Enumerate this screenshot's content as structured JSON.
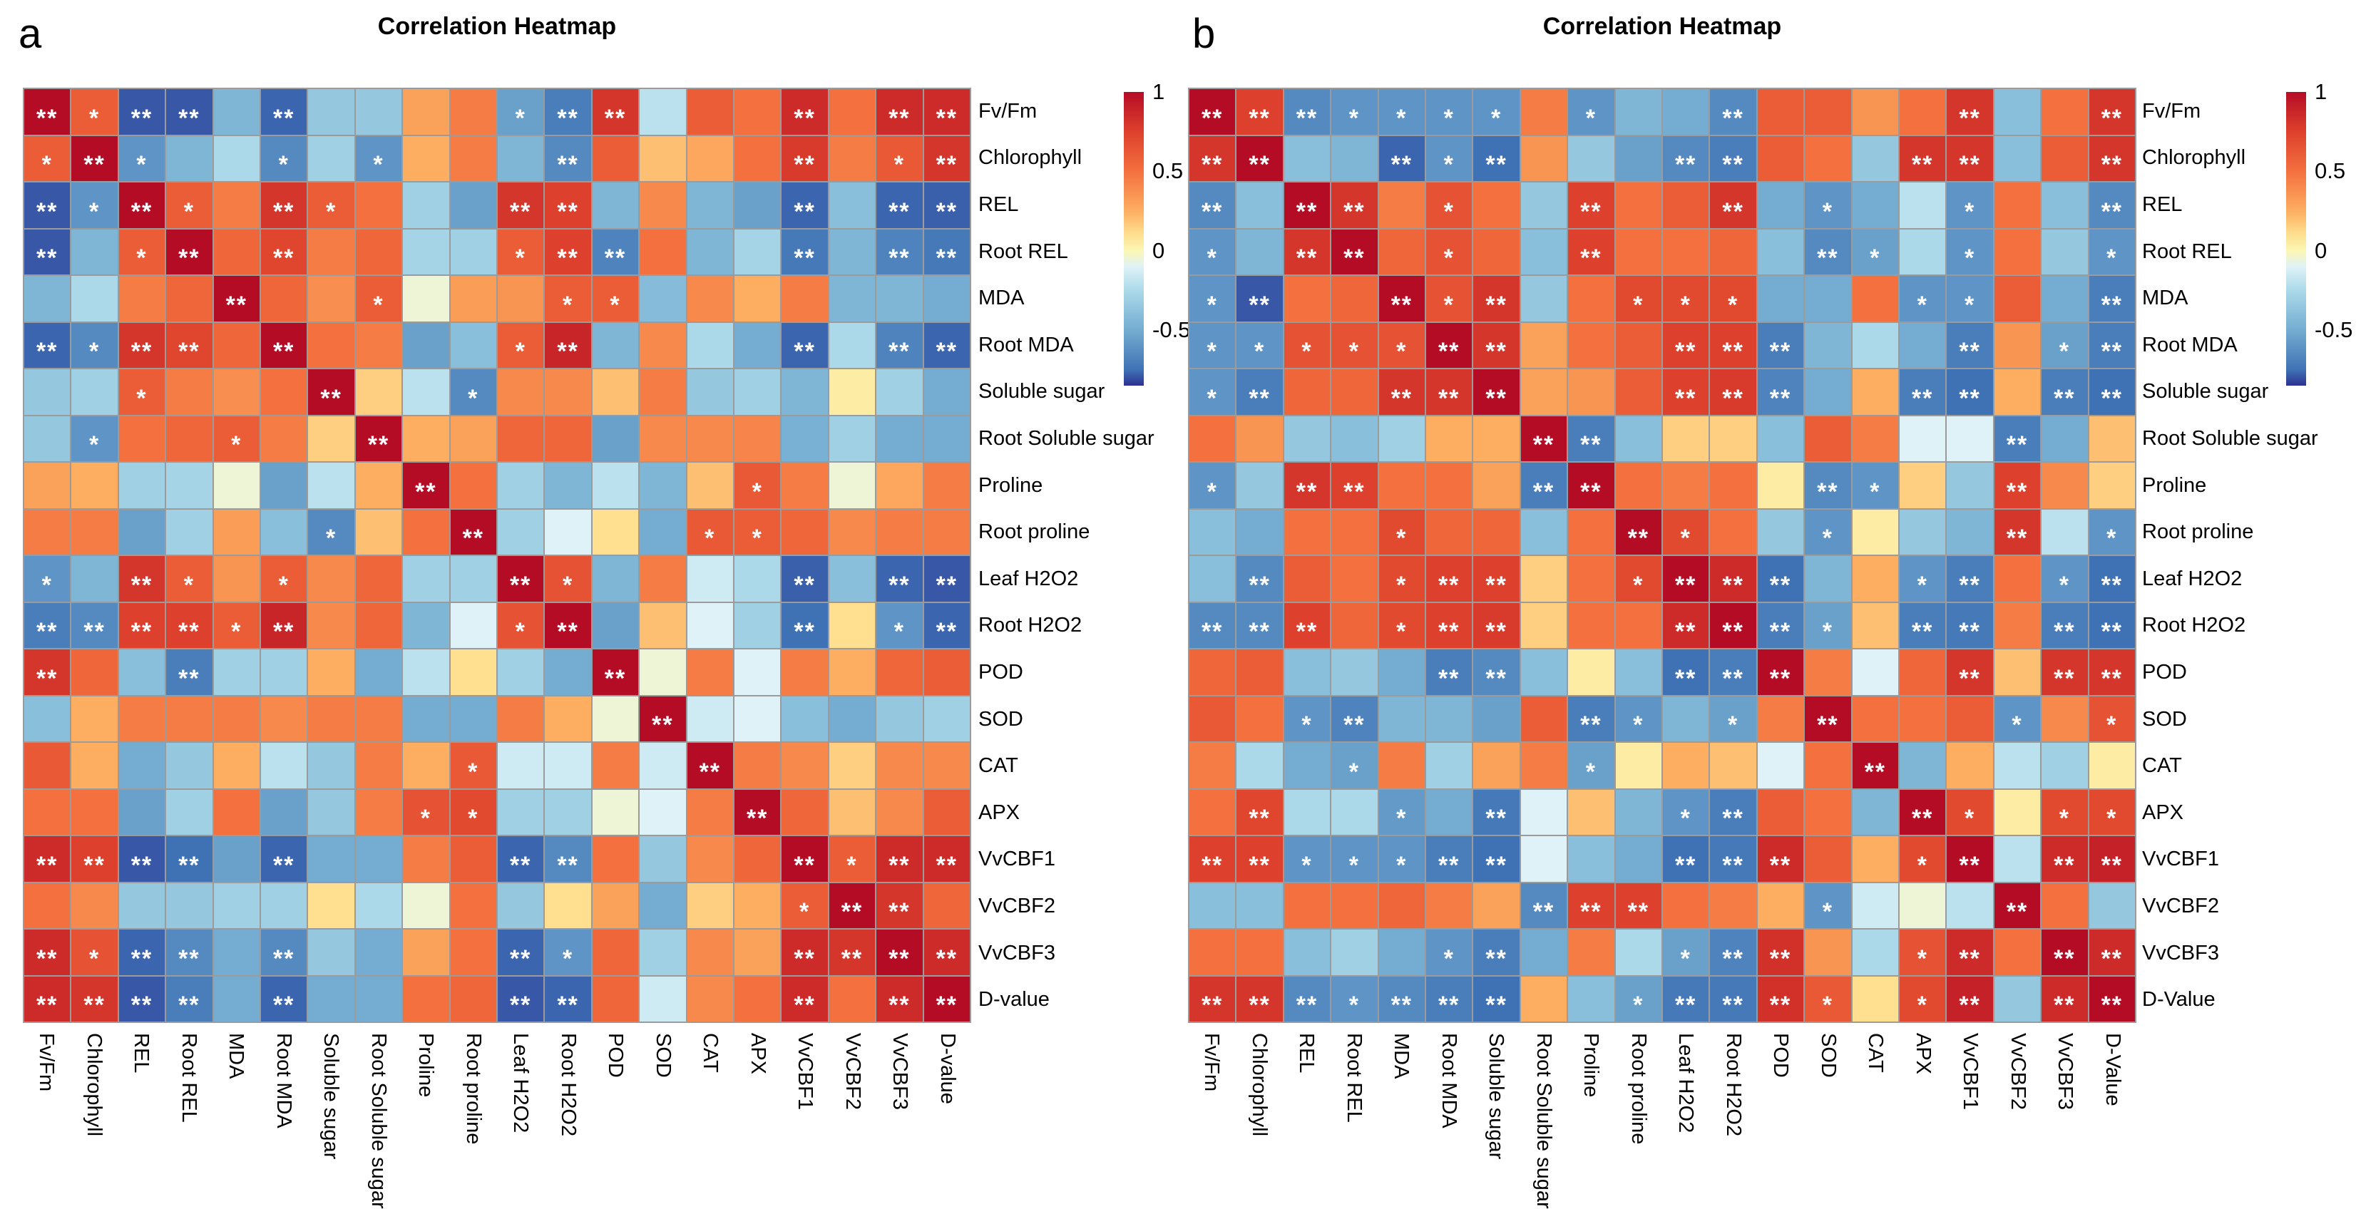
{
  "panels": [
    {
      "letter": "a",
      "title": "Correlation Heatmap",
      "labels": [
        "Fv/Fm",
        "Chlorophyll",
        "REL",
        "Root REL",
        "MDA",
        "Root MDA",
        "Soluble sugar",
        "Root Soluble sugar",
        "Proline",
        "Root proline",
        "Leaf H2O2",
        "Root H2O2",
        "POD",
        "SOD",
        "CAT",
        "APX",
        "VvCBF1",
        "VvCBF2",
        "VvCBF3",
        "D-value"
      ],
      "chart_data": {
        "type": "heatmap",
        "title": "Correlation Heatmap",
        "categories": [
          "Fv/Fm",
          "Chlorophyll",
          "REL",
          "Root REL",
          "MDA",
          "Root MDA",
          "Soluble sugar",
          "Root Soluble sugar",
          "Proline",
          "Root proline",
          "Leaf H2O2",
          "Root H2O2",
          "POD",
          "SOD",
          "CAT",
          "APX",
          "VvCBF1",
          "VvCBF2",
          "VvCBF3",
          "D-value"
        ],
        "value_range": [
          -1,
          1
        ],
        "legend_position": "right",
        "significance_note": "cells annotated with * (p<0.05) or ** (p<0.01)"
      },
      "values": [
        [
          1,
          0.6,
          -0.85,
          -0.85,
          -0.45,
          -0.8,
          -0.35,
          -0.35,
          0.3,
          0.45,
          -0.55,
          -0.7,
          0.8,
          -0.2,
          0.6,
          0.5,
          0.85,
          0.5,
          0.85,
          0.85
        ],
        [
          0.6,
          1,
          -0.6,
          -0.45,
          -0.25,
          -0.65,
          -0.3,
          -0.6,
          0.25,
          0.45,
          -0.45,
          -0.65,
          0.6,
          0.2,
          0.28,
          0.5,
          0.78,
          0.45,
          0.62,
          0.8
        ],
        [
          -0.85,
          -0.6,
          1,
          0.6,
          0.45,
          0.8,
          0.6,
          0.5,
          -0.3,
          -0.55,
          0.8,
          0.75,
          -0.45,
          0.4,
          -0.45,
          -0.55,
          -0.8,
          -0.4,
          -0.8,
          -0.82
        ],
        [
          -0.85,
          -0.45,
          0.6,
          1,
          0.55,
          0.72,
          0.45,
          0.55,
          -0.28,
          -0.3,
          0.6,
          0.75,
          -0.68,
          0.5,
          -0.45,
          -0.28,
          -0.72,
          -0.45,
          -0.68,
          -0.72
        ],
        [
          -0.45,
          -0.25,
          0.45,
          0.55,
          1,
          0.55,
          0.38,
          0.6,
          -0.05,
          0.32,
          0.35,
          0.6,
          0.6,
          -0.42,
          0.4,
          0.25,
          0.45,
          -0.45,
          -0.45,
          -0.5
        ],
        [
          -0.8,
          -0.65,
          0.8,
          0.72,
          0.55,
          1,
          0.5,
          0.45,
          -0.55,
          -0.4,
          0.6,
          0.88,
          -0.45,
          0.4,
          -0.25,
          -0.5,
          -0.8,
          -0.25,
          -0.68,
          -0.8
        ],
        [
          -0.35,
          -0.3,
          0.6,
          0.45,
          0.38,
          0.5,
          1,
          0.15,
          -0.2,
          -0.65,
          0.4,
          0.4,
          0.2,
          0.45,
          -0.35,
          -0.3,
          -0.45,
          0.05,
          -0.3,
          -0.5
        ],
        [
          -0.35,
          -0.6,
          0.5,
          0.55,
          0.6,
          0.45,
          0.15,
          1,
          0.25,
          0.3,
          0.55,
          0.55,
          -0.55,
          0.4,
          0.4,
          0.42,
          -0.48,
          -0.3,
          -0.5,
          -0.5
        ],
        [
          0.3,
          0.25,
          -0.3,
          -0.28,
          -0.05,
          -0.55,
          -0.2,
          0.25,
          1,
          0.5,
          -0.3,
          -0.45,
          -0.2,
          -0.45,
          0.2,
          0.62,
          0.45,
          -0.05,
          0.28,
          0.45
        ],
        [
          0.45,
          0.45,
          -0.55,
          -0.3,
          0.32,
          -0.4,
          -0.65,
          0.2,
          0.5,
          1,
          -0.3,
          -0.1,
          0.1,
          -0.5,
          0.62,
          0.6,
          0.55,
          0.4,
          0.45,
          0.45
        ],
        [
          -0.6,
          -0.45,
          0.8,
          0.6,
          0.35,
          0.6,
          0.4,
          0.55,
          -0.3,
          -0.3,
          1,
          0.65,
          -0.45,
          0.45,
          -0.15,
          -0.25,
          -0.82,
          -0.4,
          -0.8,
          -0.85
        ],
        [
          -0.7,
          -0.65,
          0.75,
          0.75,
          0.6,
          0.88,
          0.4,
          0.55,
          -0.45,
          -0.1,
          0.65,
          1,
          -0.55,
          0.2,
          -0.1,
          -0.3,
          -0.75,
          0.1,
          -0.6,
          -0.8
        ],
        [
          0.8,
          0.55,
          -0.4,
          -0.7,
          -0.3,
          -0.3,
          0.25,
          -0.5,
          -0.2,
          0.1,
          -0.3,
          -0.5,
          1,
          -0.05,
          0.45,
          -0.1,
          0.45,
          0.25,
          0.55,
          0.6
        ],
        [
          -0.4,
          0.25,
          0.45,
          0.45,
          0.45,
          0.4,
          0.45,
          0.45,
          -0.5,
          -0.5,
          0.45,
          0.25,
          -0.05,
          1,
          -0.15,
          -0.1,
          -0.4,
          -0.5,
          -0.35,
          -0.3
        ],
        [
          0.62,
          0.25,
          -0.5,
          -0.35,
          0.25,
          -0.2,
          -0.35,
          0.45,
          0.25,
          0.62,
          -0.15,
          -0.15,
          0.45,
          -0.15,
          1,
          0.45,
          0.4,
          0.15,
          0.4,
          0.4
        ],
        [
          0.5,
          0.5,
          -0.55,
          -0.3,
          0.5,
          -0.55,
          -0.35,
          0.45,
          0.65,
          0.7,
          -0.3,
          -0.3,
          -0.05,
          -0.1,
          0.45,
          1,
          0.55,
          0.2,
          0.4,
          0.6
        ],
        [
          0.85,
          0.75,
          -0.85,
          -0.75,
          -0.55,
          -0.8,
          -0.5,
          -0.5,
          0.45,
          0.6,
          -0.8,
          -0.65,
          0.5,
          -0.35,
          0.4,
          0.55,
          1,
          0.6,
          0.85,
          0.85
        ],
        [
          0.5,
          0.4,
          -0.35,
          -0.35,
          -0.3,
          -0.3,
          0.1,
          -0.25,
          -0.05,
          0.5,
          -0.35,
          0.1,
          0.3,
          -0.5,
          0.15,
          0.25,
          0.6,
          1,
          0.8,
          0.55
        ],
        [
          0.85,
          0.65,
          -0.8,
          -0.65,
          -0.5,
          -0.65,
          -0.35,
          -0.5,
          0.3,
          0.5,
          -0.8,
          -0.6,
          0.55,
          -0.3,
          0.4,
          0.3,
          0.85,
          0.8,
          1,
          0.85
        ],
        [
          0.85,
          0.8,
          -0.85,
          -0.7,
          -0.5,
          -0.8,
          -0.5,
          -0.5,
          0.5,
          0.55,
          -0.85,
          -0.8,
          0.55,
          -0.15,
          0.4,
          0.5,
          0.85,
          0.5,
          0.85,
          1
        ]
      ],
      "stars": [
        "21220200001220002022",
        "12100101000200002012",
        "21210210002200002022",
        "20120200001220002022",
        "00002001000110000000",
        "21220200001200002022",
        "00100020010000000000",
        "01001002000000000000",
        "00000000200000010000",
        "00000010020000110000",
        "10210100002100002022",
        "22221200001200002012",
        "20020000000020000000",
        "00000000000002000000",
        "00000000010000200000",
        "00000000110000020000",
        "22220200002200002122",
        "00000000000000001220",
        "21220200002100002222",
        "22220200002200002022"
      ]
    },
    {
      "letter": "b",
      "title": "Correlation Heatmap",
      "labels": [
        "Fv/Fm",
        "Chlorophyll",
        "REL",
        "Root REL",
        "MDA",
        "Root MDA",
        "Soluble sugar",
        "Root Soluble sugar",
        "Proline",
        "Root proline",
        "Leaf H2O2",
        "Root H2O2",
        "POD",
        "SOD",
        "CAT",
        "APX",
        "VvCBF1",
        "VvCBF2",
        "VvCBF3",
        "D-Value"
      ],
      "chart_data": {
        "type": "heatmap",
        "title": "Correlation Heatmap",
        "categories": [
          "Fv/Fm",
          "Chlorophyll",
          "REL",
          "Root REL",
          "MDA",
          "Root MDA",
          "Soluble sugar",
          "Root Soluble sugar",
          "Proline",
          "Root proline",
          "Leaf H2O2",
          "Root H2O2",
          "POD",
          "SOD",
          "CAT",
          "APX",
          "VvCBF1",
          "VvCBF2",
          "VvCBF3",
          "D-Value"
        ],
        "value_range": [
          -1,
          1
        ],
        "legend_position": "right",
        "significance_note": "cells annotated with * (p<0.05) or ** (p<0.01)"
      },
      "values": [
        [
          1,
          0.75,
          -0.65,
          -0.6,
          -0.6,
          -0.6,
          -0.6,
          0.45,
          -0.6,
          -0.45,
          -0.5,
          -0.65,
          0.6,
          0.6,
          0.35,
          0.5,
          0.8,
          -0.4,
          0.5,
          0.8
        ],
        [
          0.8,
          1,
          -0.4,
          -0.45,
          -0.8,
          -0.6,
          -0.75,
          0.35,
          -0.35,
          -0.55,
          -0.65,
          -0.7,
          0.6,
          0.5,
          -0.35,
          0.8,
          0.8,
          -0.4,
          0.6,
          0.8
        ],
        [
          -0.65,
          -0.4,
          1,
          0.8,
          0.45,
          0.65,
          0.5,
          -0.35,
          0.75,
          0.5,
          0.6,
          0.8,
          -0.5,
          -0.6,
          -0.5,
          -0.2,
          -0.6,
          0.5,
          -0.4,
          -0.65
        ],
        [
          -0.6,
          -0.45,
          0.8,
          1,
          0.55,
          0.65,
          0.55,
          -0.4,
          0.75,
          0.5,
          0.5,
          0.55,
          -0.4,
          -0.65,
          -0.55,
          -0.25,
          -0.6,
          0.5,
          -0.35,
          -0.6
        ],
        [
          -0.6,
          -0.85,
          0.5,
          0.55,
          1,
          0.65,
          0.8,
          -0.35,
          0.5,
          0.7,
          0.7,
          0.7,
          -0.5,
          -0.5,
          0.5,
          -0.6,
          -0.6,
          0.6,
          -0.5,
          -0.7
        ],
        [
          -0.6,
          -0.6,
          0.65,
          0.65,
          0.65,
          1,
          0.8,
          0.3,
          0.5,
          0.6,
          0.75,
          0.75,
          -0.7,
          -0.45,
          -0.25,
          -0.5,
          -0.7,
          0.35,
          -0.55,
          -0.7
        ],
        [
          -0.6,
          -0.7,
          0.55,
          0.55,
          0.8,
          0.8,
          1,
          0.3,
          0.35,
          0.6,
          0.75,
          0.78,
          -0.68,
          -0.5,
          0.25,
          -0.7,
          -0.75,
          0.25,
          -0.7,
          -0.75
        ],
        [
          0.5,
          0.35,
          -0.35,
          -0.4,
          -0.3,
          0.25,
          0.25,
          1,
          -0.7,
          -0.4,
          0.15,
          0.15,
          -0.4,
          0.6,
          0.45,
          -0.1,
          -0.1,
          -0.7,
          -0.5,
          0.2
        ],
        [
          -0.6,
          -0.35,
          0.8,
          0.75,
          0.5,
          0.5,
          0.3,
          -0.7,
          1,
          0.5,
          0.45,
          0.5,
          0.05,
          -0.65,
          -0.6,
          0.15,
          -0.35,
          0.75,
          0.4,
          0.15
        ],
        [
          -0.4,
          -0.5,
          0.5,
          0.5,
          0.7,
          0.55,
          0.55,
          -0.4,
          0.5,
          1,
          0.7,
          0.5,
          -0.35,
          -0.6,
          0.05,
          -0.35,
          -0.45,
          0.8,
          -0.2,
          -0.6
        ],
        [
          -0.4,
          -0.65,
          0.6,
          0.5,
          0.7,
          0.75,
          0.75,
          0.15,
          0.5,
          0.7,
          1,
          0.85,
          -0.75,
          -0.45,
          0.25,
          -0.6,
          -0.7,
          0.5,
          -0.6,
          -0.75
        ],
        [
          -0.65,
          -0.65,
          0.75,
          0.55,
          0.7,
          0.75,
          0.78,
          0.15,
          0.5,
          0.5,
          0.85,
          1,
          -0.7,
          -0.55,
          0.2,
          -0.7,
          -0.72,
          0.45,
          -0.7,
          -0.75
        ],
        [
          0.55,
          0.6,
          -0.4,
          -0.35,
          -0.5,
          -0.7,
          -0.65,
          -0.4,
          0.05,
          -0.4,
          -0.75,
          -0.7,
          1,
          0.45,
          -0.1,
          0.55,
          0.8,
          0.2,
          0.8,
          0.8
        ],
        [
          0.62,
          0.5,
          -0.6,
          -0.68,
          -0.45,
          -0.45,
          -0.55,
          0.6,
          -0.7,
          -0.6,
          -0.45,
          -0.55,
          0.45,
          1,
          0.5,
          0.5,
          0.6,
          -0.6,
          0.4,
          0.65
        ],
        [
          0.45,
          -0.25,
          -0.5,
          -0.55,
          0.45,
          -0.3,
          0.3,
          0.45,
          -0.55,
          0.05,
          0.25,
          0.2,
          -0.1,
          0.5,
          1,
          -0.45,
          0.25,
          -0.2,
          -0.3,
          0.05
        ],
        [
          0.5,
          0.72,
          -0.25,
          -0.25,
          -0.58,
          -0.5,
          -0.72,
          -0.1,
          0.2,
          -0.45,
          -0.6,
          -0.7,
          0.6,
          0.5,
          -0.45,
          1,
          0.7,
          0.05,
          0.7,
          0.7
        ],
        [
          0.75,
          0.75,
          -0.6,
          -0.6,
          -0.6,
          -0.7,
          -0.75,
          -0.1,
          -0.4,
          -0.5,
          -0.75,
          -0.72,
          0.85,
          0.6,
          0.25,
          0.7,
          1,
          -0.2,
          0.85,
          0.9
        ],
        [
          -0.4,
          -0.4,
          0.5,
          0.5,
          0.55,
          0.45,
          0.3,
          -0.65,
          0.75,
          0.75,
          0.5,
          0.45,
          0.25,
          -0.6,
          -0.15,
          -0.05,
          -0.2,
          1,
          0.5,
          -0.35
        ],
        [
          0.5,
          0.5,
          -0.4,
          -0.3,
          -0.5,
          -0.6,
          -0.7,
          -0.5,
          0.45,
          -0.25,
          -0.55,
          -0.68,
          0.82,
          0.35,
          -0.25,
          0.65,
          0.85,
          0.5,
          1,
          0.85
        ],
        [
          0.8,
          0.8,
          -0.65,
          -0.6,
          -0.65,
          -0.7,
          -0.75,
          0.25,
          -0.4,
          -0.55,
          -0.72,
          -0.72,
          0.82,
          0.62,
          0.1,
          0.7,
          0.9,
          -0.35,
          0.85,
          1
        ]
      ],
      "stars": [
        "22211110100200002002",
        "22002120002200022002",
        "20220100200201001002",
        "10220100200002101001",
        "12002120011100011002",
        "11111220002220002012",
        "12002220002220022022",
        "00000002200000000200",
        "10220002200002100200",
        "00001000021001000201",
        "02001220012220012012",
        "22201220002221022022",
        "00000220002220002022",
        "00120000210102000101",
        "00010000100000200000",
        "02001020001200021011",
        "22111220002220012022",
        "00000002220001000200",
        "00000120001220012022",
        "22212220012221012022"
      ]
    }
  ],
  "colorbar": {
    "tick_labels": [
      "1",
      "0.5",
      "0",
      "-0.5"
    ],
    "tick_values": [
      1,
      0.5,
      0,
      -0.5
    ],
    "max": 1,
    "min": -0.85
  },
  "colormap": [
    [
      1.0,
      "#b50c26"
    ],
    [
      0.75,
      "#dd402c"
    ],
    [
      0.5,
      "#f4703f"
    ],
    [
      0.25,
      "#fdae61"
    ],
    [
      0.1,
      "#fee090"
    ],
    [
      0.0,
      "#fbf7b5"
    ],
    [
      -0.1,
      "#dff2f7"
    ],
    [
      -0.25,
      "#abd9e9"
    ],
    [
      -0.5,
      "#74add1"
    ],
    [
      -0.75,
      "#3f72b5"
    ],
    [
      -1.0,
      "#2d3192"
    ]
  ],
  "significance_symbols": {
    "0": "",
    "1": "*",
    "2": "**"
  }
}
